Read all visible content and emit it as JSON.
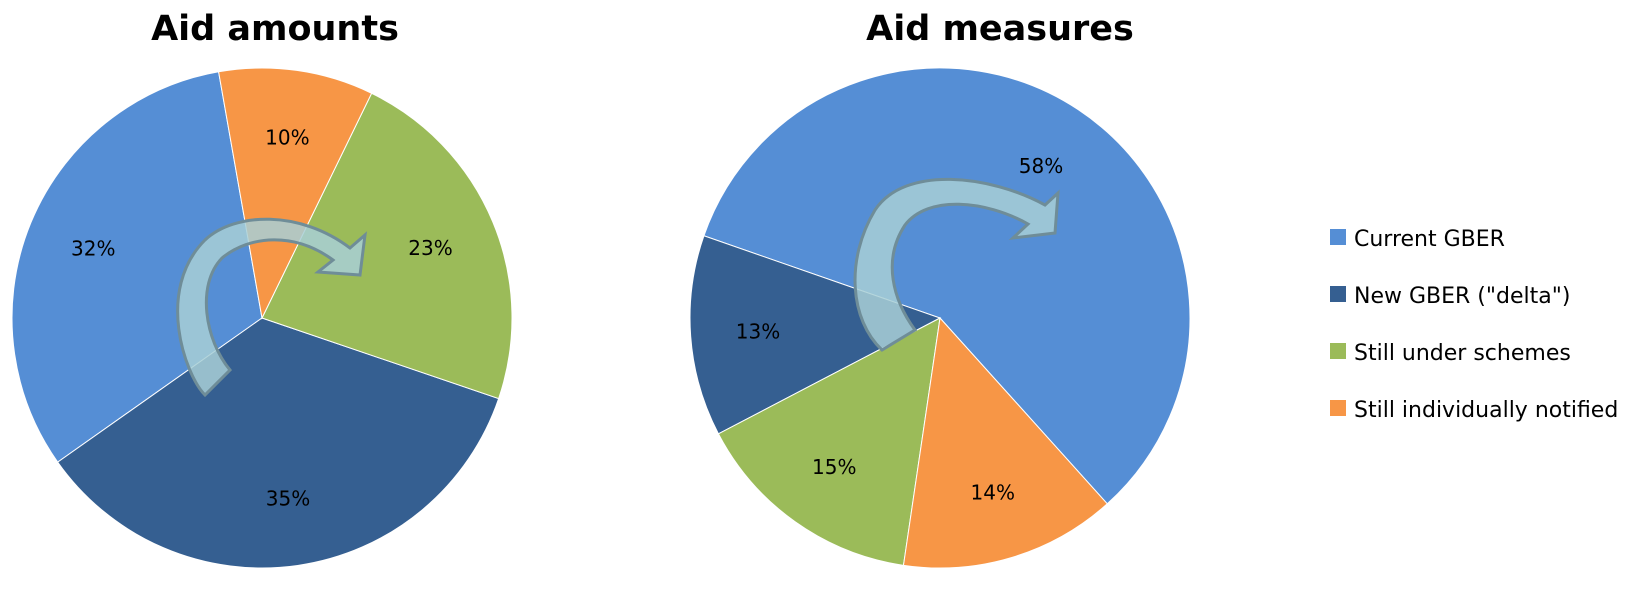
{
  "legend": {
    "items": [
      {
        "label": "Current GBER",
        "color": "#558ED5"
      },
      {
        "label": "New GBER (\"delta\")",
        "color": "#355F91"
      },
      {
        "label": "Still under schemes",
        "color": "#9BBB59"
      },
      {
        "label": "Still individually notified",
        "color": "#F79646"
      }
    ]
  },
  "chart_data": [
    {
      "type": "pie",
      "title": "Aid amounts",
      "categories": [
        "Current GBER",
        "New GBER (\"delta\")",
        "Still under schemes",
        "Still individually notified"
      ],
      "values": [
        32,
        35,
        23,
        10
      ],
      "labels": [
        "32%",
        "35%",
        "23%",
        "10%"
      ],
      "colors": [
        "#558ED5",
        "#355F91",
        "#9BBB59",
        "#F79646"
      ],
      "start_angle_deg": 100,
      "legend": "right"
    },
    {
      "type": "pie",
      "title": "Aid measures",
      "categories": [
        "Current GBER",
        "New GBER (\"delta\")",
        "Still under schemes",
        "Still individually notified"
      ],
      "values": [
        58,
        13,
        15,
        14
      ],
      "labels": [
        "58%",
        "13%",
        "15%",
        "14%"
      ],
      "colors": [
        "#558ED5",
        "#355F91",
        "#9BBB59",
        "#F79646"
      ],
      "start_angle_deg": 312,
      "legend": "right"
    }
  ]
}
